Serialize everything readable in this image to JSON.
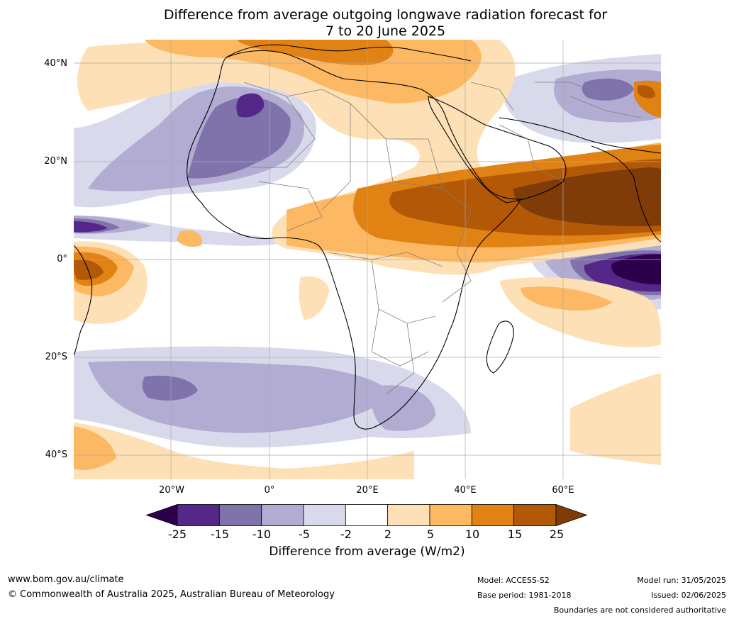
{
  "title": {
    "line1": "Difference from average outgoing longwave radiation forecast for",
    "line2": "7 to 20 June 2025"
  },
  "map": {
    "lat_labels": [
      "40°N",
      "20°N",
      "0°",
      "20°S",
      "40°S"
    ],
    "lon_labels": [
      "20°W",
      "0°",
      "20°E",
      "40°E",
      "60°E"
    ]
  },
  "colorbar": {
    "ticks": [
      "-25",
      "-15",
      "-10",
      "-5",
      "-2",
      "2",
      "5",
      "10",
      "15",
      "25"
    ],
    "label": "Difference from average (W/m2)",
    "colors": [
      "#2d004b",
      "#542788",
      "#8073ac",
      "#b2abd2",
      "#d8daeb",
      "#ffffff",
      "#fee0b6",
      "#fdb863",
      "#e08214",
      "#b35806",
      "#7f3b08"
    ]
  },
  "footer": {
    "website": "www.bom.gov.au/climate",
    "copyright": "© Commonwealth of Australia 2025, Australian Bureau of Meteorology",
    "model": "Model: ACCESS-S2",
    "base_period": "Base period: 1981-2018",
    "model_run": "Model run: 31/05/2025",
    "issued": "Issued: 02/06/2025",
    "disclaimer": "Boundaries are not considered authoritative"
  }
}
